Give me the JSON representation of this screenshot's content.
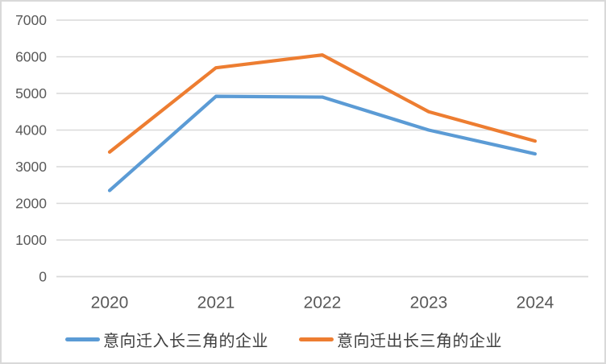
{
  "chart_data": {
    "type": "line",
    "title": "",
    "xlabel": "",
    "ylabel": "",
    "categories": [
      "2020",
      "2021",
      "2022",
      "2023",
      "2024"
    ],
    "series": [
      {
        "name": "意向迁入长三角的企业",
        "color": "#5B9BD5",
        "values": [
          2350,
          4920,
          4900,
          4000,
          3350
        ]
      },
      {
        "name": "意向迁出长三角的企业",
        "color": "#ED7D31",
        "values": [
          3400,
          5700,
          6050,
          4500,
          3700
        ]
      }
    ],
    "ylim": [
      0,
      7000
    ],
    "ytick_step": 1000,
    "ytick_labels": [
      "0",
      "1000",
      "2000",
      "3000",
      "4000",
      "5000",
      "6000",
      "7000"
    ],
    "grid": true,
    "legend_position": "bottom"
  },
  "legend": {
    "items": [
      {
        "label": "意向迁入长三角的企业",
        "color": "#5B9BD5"
      },
      {
        "label": "意向迁出长三角的企业",
        "color": "#ED7D31"
      }
    ]
  },
  "colors": {
    "background": "#FFFFFF",
    "border": "#D9D9D9",
    "gridline": "#D9D9D9",
    "axis_text": "#595959",
    "legend_text": "#404040",
    "series_in": "#5B9BD5",
    "series_out": "#ED7D31"
  }
}
